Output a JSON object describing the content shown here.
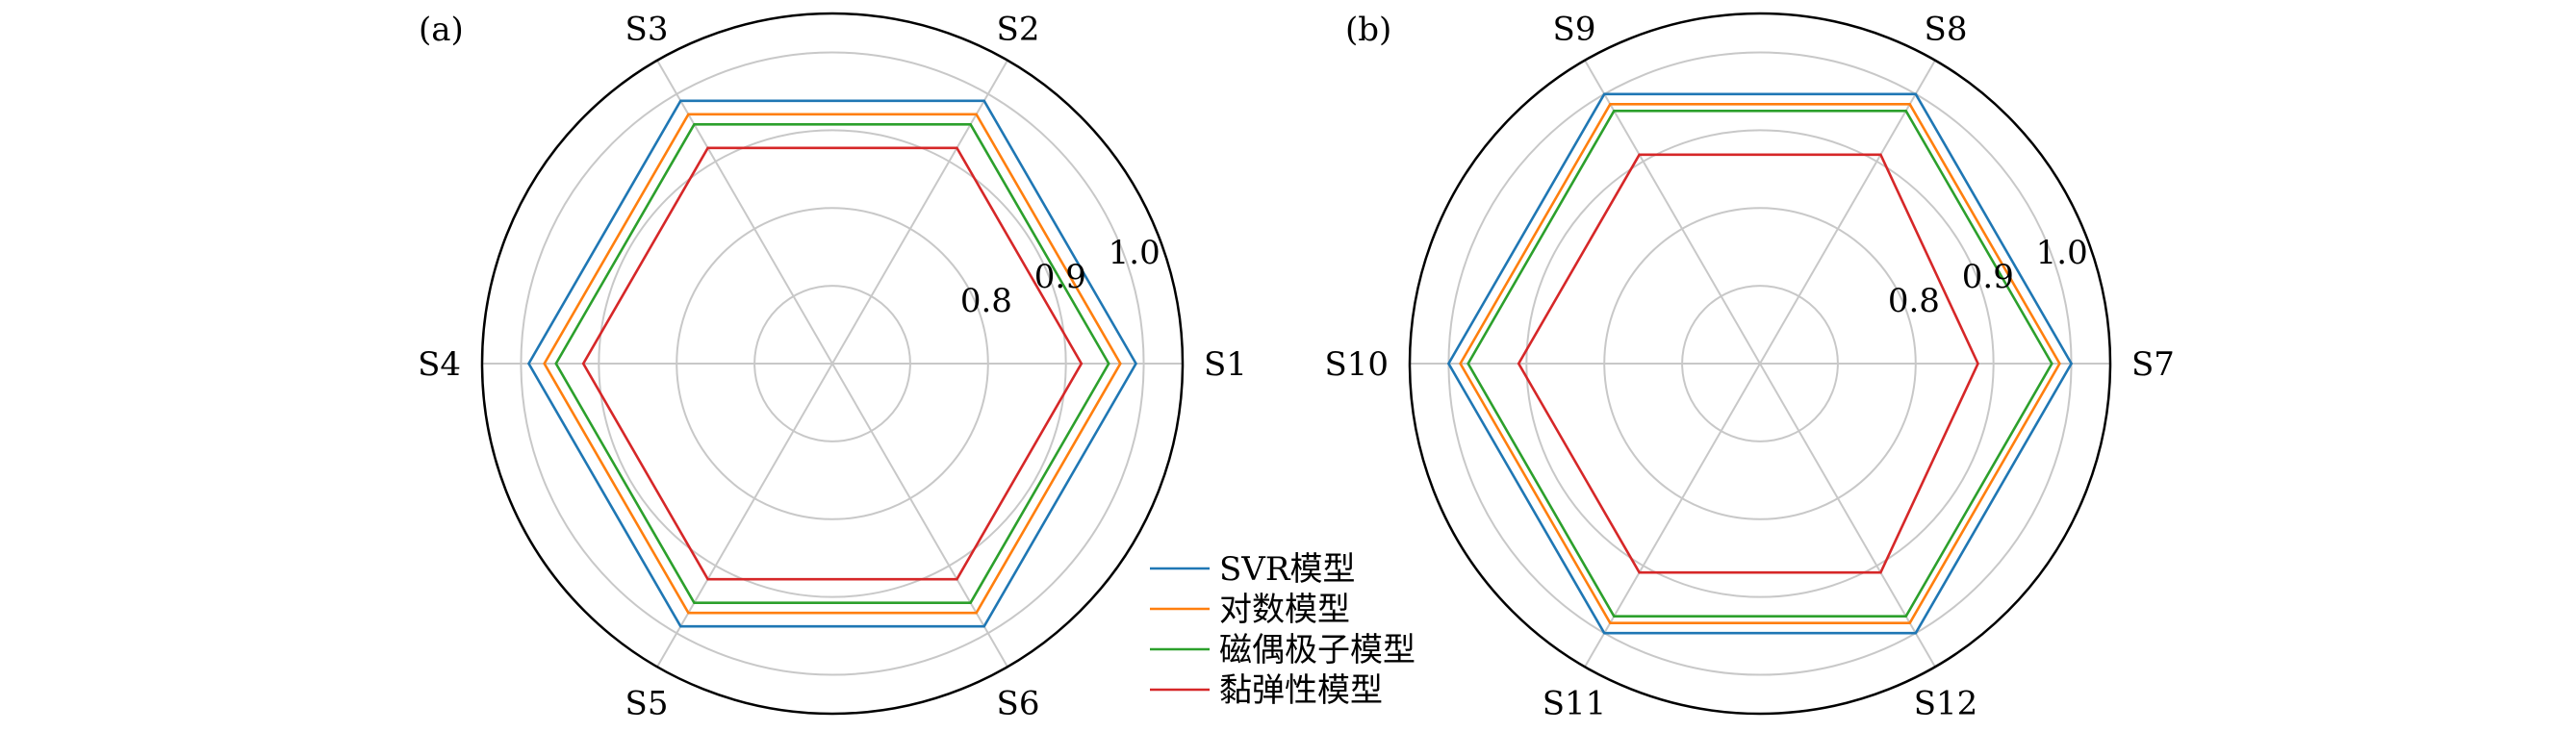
{
  "chart_data": [
    {
      "type": "radar",
      "panel_label": "(a)",
      "categories": [
        "S1",
        "S2",
        "S3",
        "S4",
        "S5",
        "S6"
      ],
      "rlim": [
        0.6,
        1.05
      ],
      "rticks": [
        0.7,
        0.8,
        0.9,
        1.0
      ],
      "rtick_labels": [
        "0.8",
        "0.9",
        "1.0"
      ],
      "grid": true,
      "series": [
        {
          "name": "SVR模型",
          "color": "#1f77b4",
          "values": [
            0.99,
            0.99,
            0.99,
            0.99,
            0.99,
            0.99
          ]
        },
        {
          "name": "对数模型",
          "color": "#ff7f0e",
          "values": [
            0.97,
            0.97,
            0.97,
            0.97,
            0.97,
            0.97
          ]
        },
        {
          "name": "磁偶极子模型",
          "color": "#2ca02c",
          "values": [
            0.955,
            0.955,
            0.955,
            0.955,
            0.955,
            0.955
          ]
        },
        {
          "name": "黏弹性模型",
          "color": "#d62728",
          "values": [
            0.92,
            0.92,
            0.92,
            0.92,
            0.92,
            0.92
          ]
        }
      ]
    },
    {
      "type": "radar",
      "panel_label": "(b)",
      "categories": [
        "S7",
        "S8",
        "S9",
        "S10",
        "S11",
        "S12"
      ],
      "rlim": [
        0.6,
        1.05
      ],
      "rticks": [
        0.7,
        0.8,
        0.9,
        1.0
      ],
      "rtick_labels": [
        "0.8",
        "0.9",
        "1.0"
      ],
      "grid": true,
      "series": [
        {
          "name": "SVR模型",
          "color": "#1f77b4",
          "values": [
            1.0,
            1.0,
            1.0,
            1.0,
            1.0,
            1.0
          ]
        },
        {
          "name": "对数模型",
          "color": "#ff7f0e",
          "values": [
            0.985,
            0.985,
            0.985,
            0.985,
            0.985,
            0.985
          ]
        },
        {
          "name": "磁偶极子模型",
          "color": "#2ca02c",
          "values": [
            0.975,
            0.975,
            0.975,
            0.975,
            0.975,
            0.975
          ]
        },
        {
          "name": "黏弹性模型",
          "color": "#d62728",
          "values": [
            0.88,
            0.91,
            0.91,
            0.91,
            0.91,
            0.91
          ]
        }
      ]
    }
  ],
  "legend": {
    "placement": "bottom-center",
    "entries": [
      {
        "label": "SVR模型",
        "color": "#1f77b4"
      },
      {
        "label": "对数模型",
        "color": "#ff7f0e"
      },
      {
        "label": "磁偶极子模型",
        "color": "#2ca02c"
      },
      {
        "label": "黏弹性模型",
        "color": "#d62728"
      }
    ]
  }
}
